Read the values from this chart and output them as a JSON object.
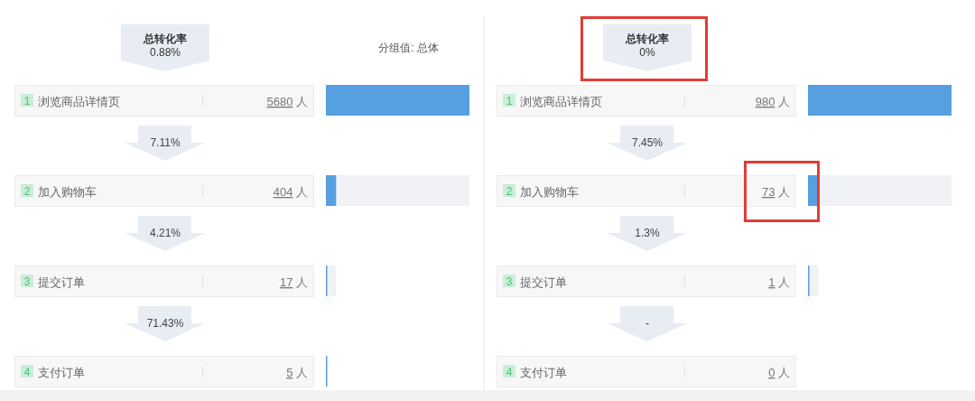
{
  "chart_data": [
    {
      "type": "bar",
      "orientation": "horizontal",
      "title": "总转化率",
      "subtitle": "0.88%",
      "xlabel": "分组值: 总体",
      "categories": [
        "1 浏览商品详情页",
        "2 加入购物车",
        "3 提交订单",
        "4 支付订单"
      ],
      "values": [
        5680,
        404,
        17,
        5
      ],
      "value_labels": [
        "5680 人",
        "404 人",
        "17 人",
        "5 人"
      ],
      "annotations": [
        "7.11%",
        "4.21%",
        "71.43%"
      ],
      "color": "#569fe0"
    },
    {
      "type": "bar",
      "orientation": "horizontal",
      "title": "总转化率",
      "subtitle": "0%",
      "categories": [
        "1 浏览商品详情页",
        "2 加入购物车",
        "3 提交订单",
        "4 支付订单"
      ],
      "values": [
        980,
        73,
        1,
        0
      ],
      "value_labels": [
        "980 人",
        "73 人",
        "1 人",
        "0 人"
      ],
      "annotations": [
        "7.45%",
        "1.3%",
        "-"
      ],
      "color": "#569fe0"
    }
  ]
}
